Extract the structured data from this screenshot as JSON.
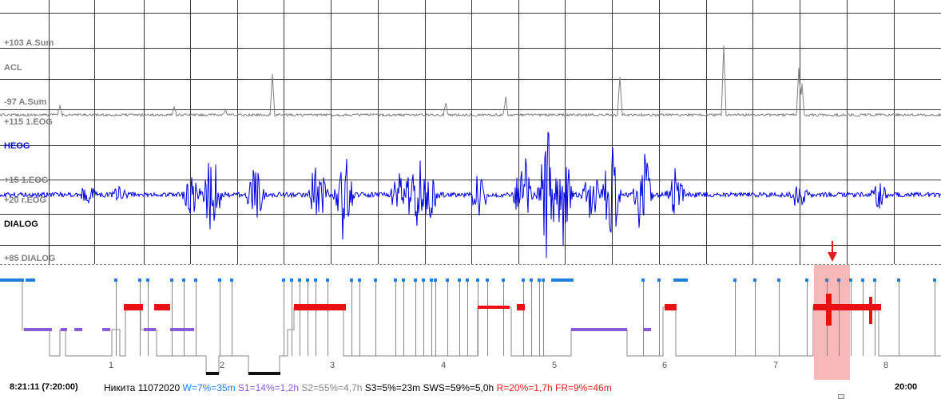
{
  "channels": {
    "asum_top": "+103 A.Sum",
    "acl": "ACL",
    "asum_bottom": "-97 A.Sum",
    "leog_top": "+115 1.EOG",
    "heog": "HEOG",
    "leog_bottom": "+15 1.EOG",
    "r_eog": "+20 r.EOG",
    "dialog": "DIALOG",
    "dialog_bottom": "+85 DIALOG"
  },
  "hypnogram": {
    "hour_labels": [
      "1",
      "2",
      "3",
      "4",
      "5",
      "6",
      "7",
      "8"
    ],
    "selection_marker": "down-arrow-icon"
  },
  "status": {
    "time": "8:21:11 (7:20:00)",
    "subject": "Никита 11072020",
    "w": "W=7%=35m",
    "s1": "S1=14%=1,2h",
    "s2": "S2=55%=4,7h",
    "s3": "S3=5%=23m",
    "sws": "SWS=59%=5,0h",
    "r": "R=20%=1,7h",
    "fr": "FR=9%=46m",
    "end_time": "20:00"
  },
  "colors": {
    "grid": "#333333",
    "acl_trace": "#808080",
    "heog_trace": "#0000dd",
    "stage_w": "#1e7fe0",
    "stage_s1": "#8a5ad8",
    "stage_s2": "#888888",
    "stage_s3": "#111111",
    "stage_r": "#e81010",
    "selection": "#f7b8b8"
  }
}
